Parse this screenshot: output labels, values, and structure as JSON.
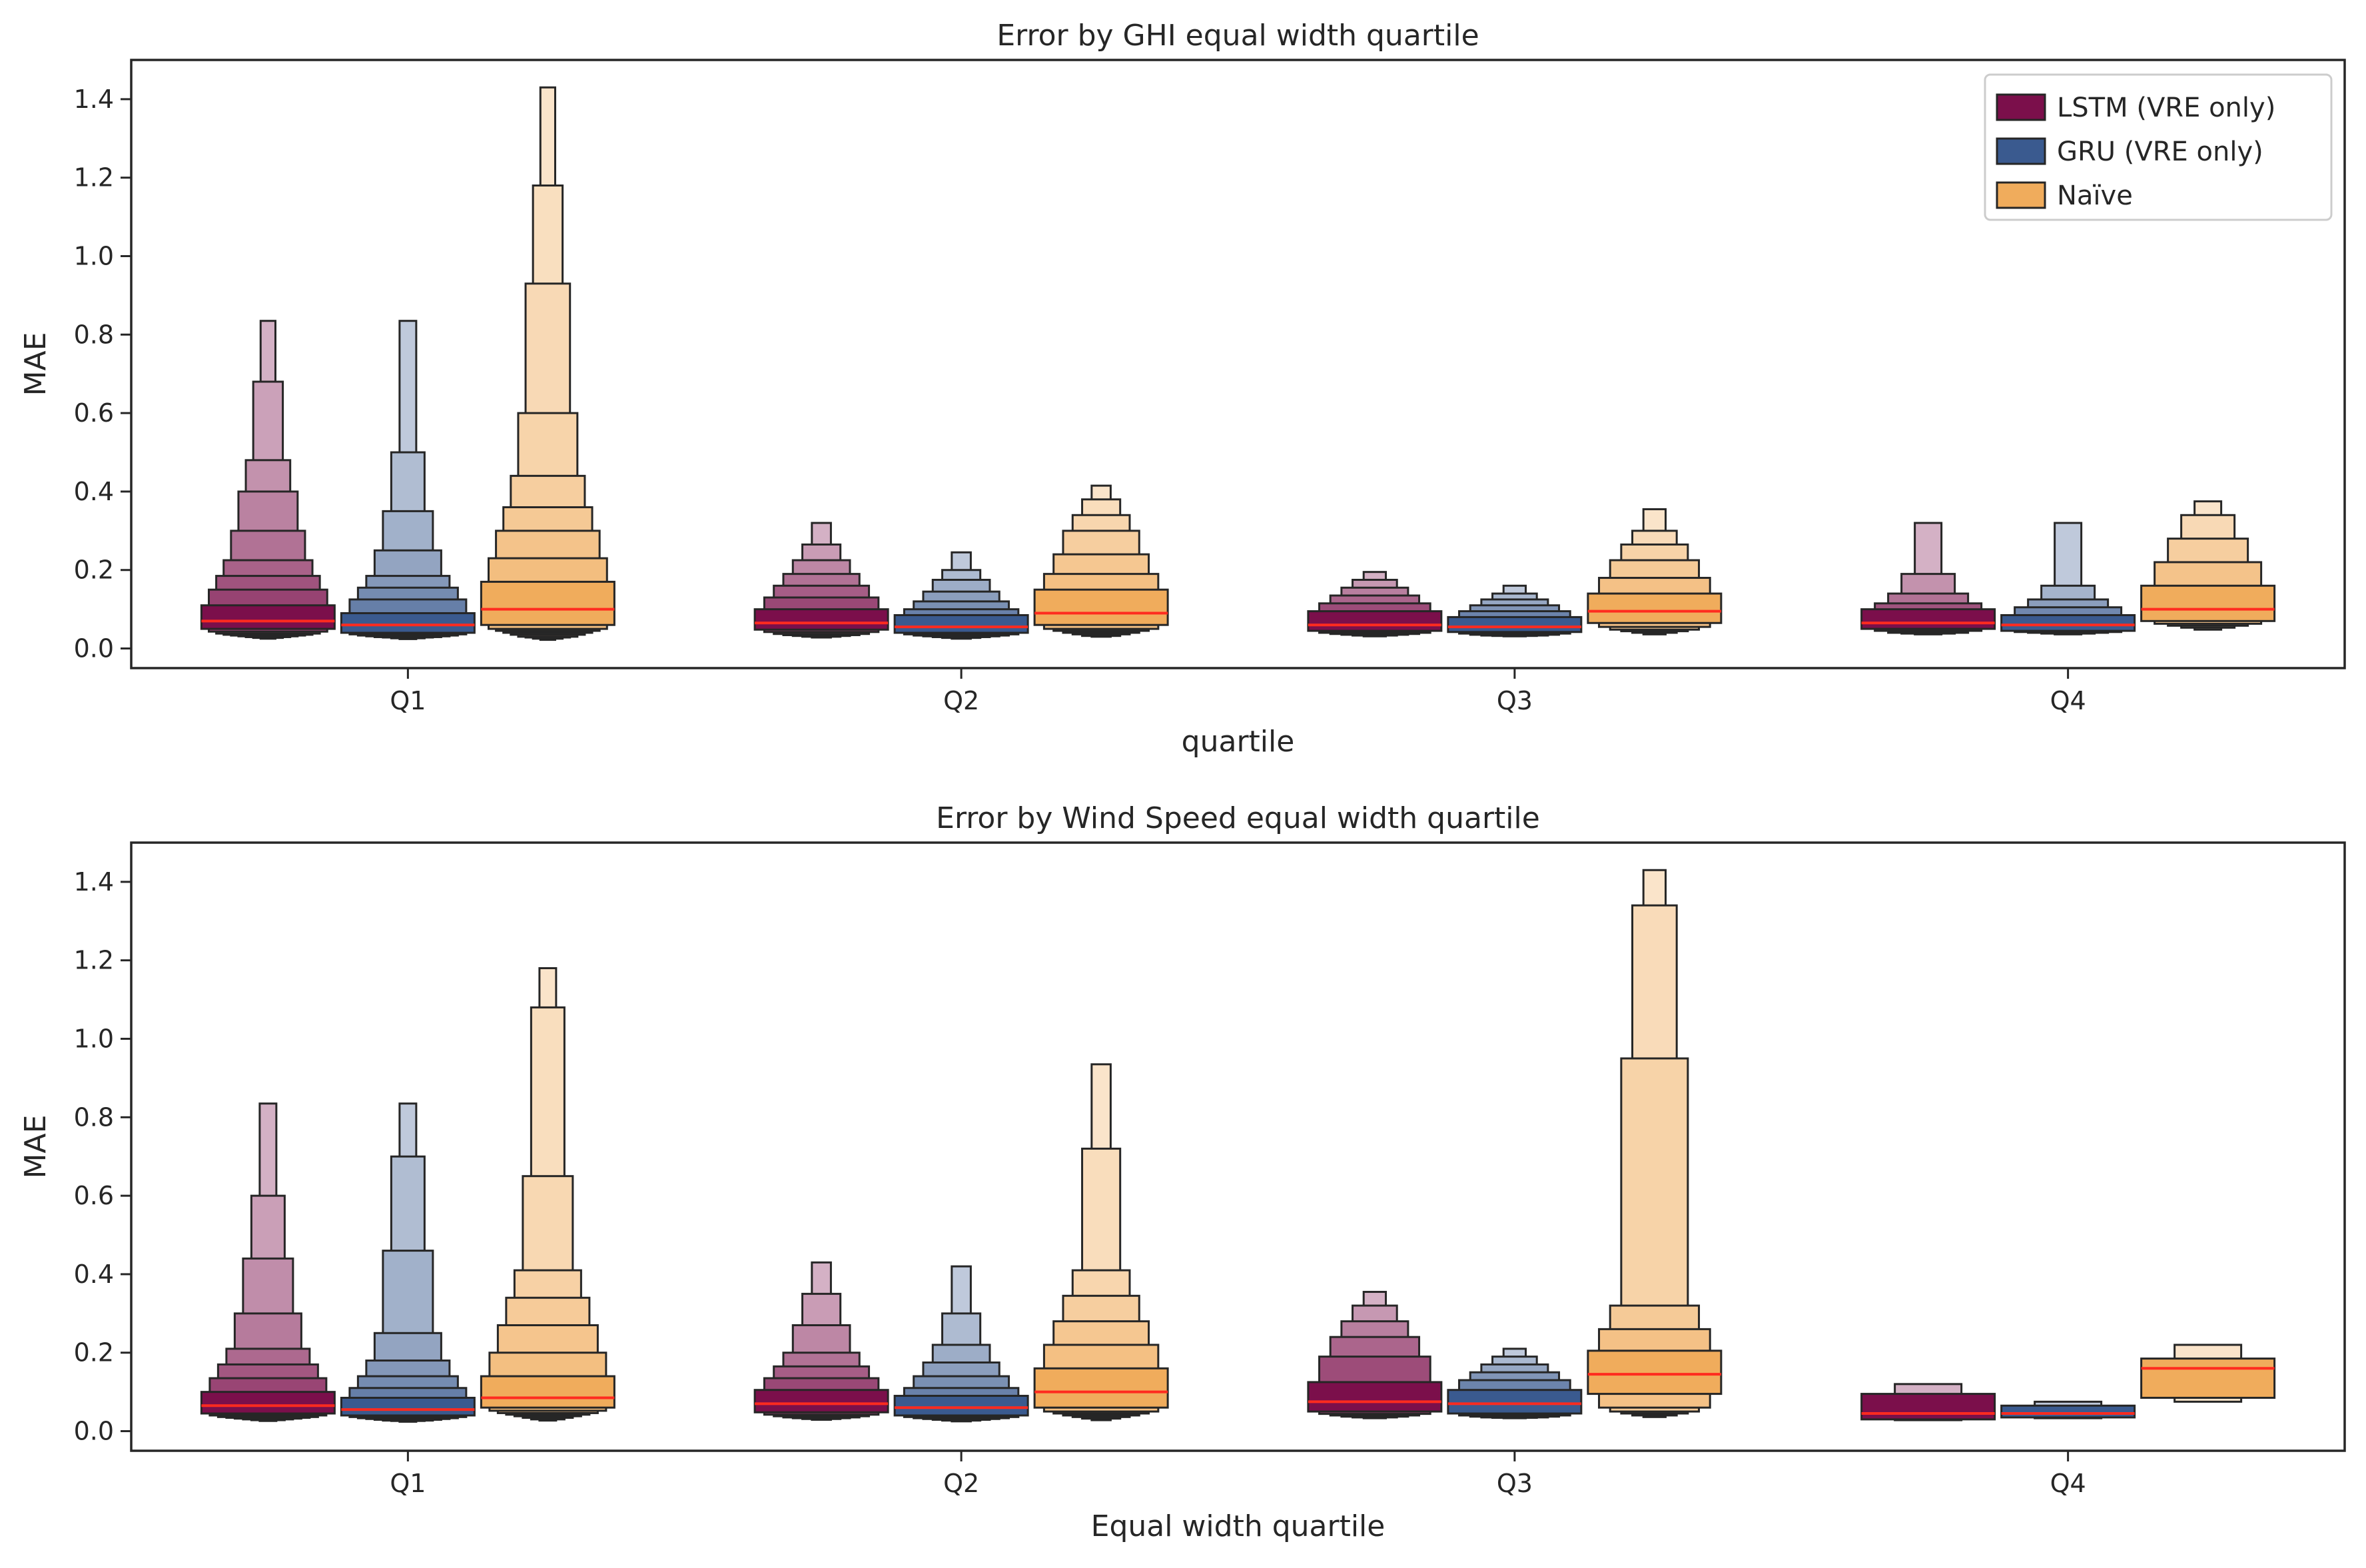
{
  "colors": {
    "LSTM (VRE only)": "#7b0f4b",
    "GRU (VRE only)": "#3a5a8f",
    "Naïve": "#f0ac5c",
    "median": "#ff2b1f",
    "edge": "#262626"
  },
  "legend": {
    "placement": "top-right",
    "entries": [
      "LSTM (VRE only)",
      "GRU (VRE only)",
      "Naïve"
    ]
  },
  "chart_data": [
    {
      "type": "boxen",
      "title": "Error by GHI equal width quartile",
      "xlabel": "quartile",
      "ylabel": "MAE",
      "ylim": [
        -0.05,
        1.5
      ],
      "yticks": [
        0.0,
        0.2,
        0.4,
        0.6,
        0.8,
        1.0,
        1.2,
        1.4
      ],
      "ytick_labels": [
        "0.0",
        "0.2",
        "0.4",
        "0.6",
        "0.8",
        "1.0",
        "1.2",
        "1.4"
      ],
      "categories": [
        "Q1",
        "Q2",
        "Q3",
        "Q4"
      ],
      "series": [
        {
          "name": "LSTM (VRE only)",
          "groups": [
            {
              "median": 0.07,
              "levels": [
                [
                  0.05,
                  0.11
                ],
                [
                  0.043,
                  0.15
                ],
                [
                  0.038,
                  0.185
                ],
                [
                  0.035,
                  0.225
                ],
                [
                  0.033,
                  0.3
                ],
                [
                  0.031,
                  0.4
                ],
                [
                  0.029,
                  0.48
                ],
                [
                  0.027,
                  0.68
                ],
                [
                  0.025,
                  0.835
                ]
              ]
            },
            {
              "median": 0.065,
              "levels": [
                [
                  0.048,
                  0.1
                ],
                [
                  0.042,
                  0.13
                ],
                [
                  0.037,
                  0.16
                ],
                [
                  0.034,
                  0.19
                ],
                [
                  0.032,
                  0.225
                ],
                [
                  0.03,
                  0.265
                ],
                [
                  0.028,
                  0.32
                ]
              ]
            },
            {
              "median": 0.06,
              "levels": [
                [
                  0.045,
                  0.095
                ],
                [
                  0.04,
                  0.115
                ],
                [
                  0.037,
                  0.135
                ],
                [
                  0.035,
                  0.155
                ],
                [
                  0.033,
                  0.175
                ],
                [
                  0.031,
                  0.195
                ]
              ]
            },
            {
              "median": 0.065,
              "levels": [
                [
                  0.05,
                  0.1
                ],
                [
                  0.045,
                  0.115
                ],
                [
                  0.04,
                  0.14
                ],
                [
                  0.038,
                  0.19
                ],
                [
                  0.036,
                  0.32
                ]
              ]
            }
          ]
        },
        {
          "name": "GRU (VRE only)",
          "groups": [
            {
              "median": 0.06,
              "levels": [
                [
                  0.04,
                  0.09
                ],
                [
                  0.036,
                  0.125
                ],
                [
                  0.033,
                  0.155
                ],
                [
                  0.031,
                  0.185
                ],
                [
                  0.029,
                  0.25
                ],
                [
                  0.028,
                  0.35
                ],
                [
                  0.026,
                  0.5
                ],
                [
                  0.024,
                  0.835
                ]
              ]
            },
            {
              "median": 0.055,
              "levels": [
                [
                  0.04,
                  0.085
                ],
                [
                  0.036,
                  0.1
                ],
                [
                  0.033,
                  0.12
                ],
                [
                  0.031,
                  0.145
                ],
                [
                  0.029,
                  0.175
                ],
                [
                  0.027,
                  0.2
                ],
                [
                  0.025,
                  0.245
                ]
              ]
            },
            {
              "median": 0.055,
              "levels": [
                [
                  0.042,
                  0.08
                ],
                [
                  0.038,
                  0.095
                ],
                [
                  0.035,
                  0.11
                ],
                [
                  0.033,
                  0.125
                ],
                [
                  0.032,
                  0.14
                ],
                [
                  0.031,
                  0.16
                ]
              ]
            },
            {
              "median": 0.06,
              "levels": [
                [
                  0.045,
                  0.085
                ],
                [
                  0.042,
                  0.105
                ],
                [
                  0.04,
                  0.125
                ],
                [
                  0.038,
                  0.16
                ],
                [
                  0.036,
                  0.32
                ]
              ]
            }
          ]
        },
        {
          "name": "Naïve",
          "groups": [
            {
              "median": 0.1,
              "levels": [
                [
                  0.06,
                  0.17
                ],
                [
                  0.05,
                  0.23
                ],
                [
                  0.045,
                  0.3
                ],
                [
                  0.04,
                  0.36
                ],
                [
                  0.035,
                  0.44
                ],
                [
                  0.03,
                  0.6
                ],
                [
                  0.028,
                  0.93
                ],
                [
                  0.025,
                  1.18
                ],
                [
                  0.022,
                  1.43
                ]
              ]
            },
            {
              "median": 0.09,
              "levels": [
                [
                  0.06,
                  0.15
                ],
                [
                  0.05,
                  0.19
                ],
                [
                  0.045,
                  0.24
                ],
                [
                  0.04,
                  0.3
                ],
                [
                  0.036,
                  0.34
                ],
                [
                  0.032,
                  0.38
                ],
                [
                  0.03,
                  0.415
                ]
              ]
            },
            {
              "median": 0.095,
              "levels": [
                [
                  0.065,
                  0.14
                ],
                [
                  0.055,
                  0.18
                ],
                [
                  0.048,
                  0.225
                ],
                [
                  0.044,
                  0.265
                ],
                [
                  0.04,
                  0.3
                ],
                [
                  0.036,
                  0.355
                ]
              ]
            },
            {
              "median": 0.1,
              "levels": [
                [
                  0.07,
                  0.16
                ],
                [
                  0.063,
                  0.22
                ],
                [
                  0.058,
                  0.28
                ],
                [
                  0.053,
                  0.34
                ],
                [
                  0.048,
                  0.375
                ]
              ]
            }
          ]
        }
      ]
    },
    {
      "type": "boxen",
      "title": "Error by Wind Speed equal width quartile",
      "xlabel": "Equal width quartile",
      "ylabel": "MAE",
      "ylim": [
        -0.05,
        1.5
      ],
      "yticks": [
        0.0,
        0.2,
        0.4,
        0.6,
        0.8,
        1.0,
        1.2,
        1.4
      ],
      "ytick_labels": [
        "0.0",
        "0.2",
        "0.4",
        "0.6",
        "0.8",
        "1.0",
        "1.2",
        "1.4"
      ],
      "categories": [
        "Q1",
        "Q2",
        "Q3",
        "Q4"
      ],
      "series": [
        {
          "name": "LSTM (VRE only)",
          "groups": [
            {
              "median": 0.065,
              "levels": [
                [
                  0.045,
                  0.1
                ],
                [
                  0.04,
                  0.135
                ],
                [
                  0.036,
                  0.17
                ],
                [
                  0.034,
                  0.21
                ],
                [
                  0.032,
                  0.3
                ],
                [
                  0.03,
                  0.44
                ],
                [
                  0.028,
                  0.6
                ],
                [
                  0.026,
                  0.835
                ]
              ]
            },
            {
              "median": 0.07,
              "levels": [
                [
                  0.048,
                  0.105
                ],
                [
                  0.042,
                  0.135
                ],
                [
                  0.038,
                  0.165
                ],
                [
                  0.035,
                  0.2
                ],
                [
                  0.033,
                  0.27
                ],
                [
                  0.031,
                  0.35
                ],
                [
                  0.029,
                  0.43
                ]
              ]
            },
            {
              "median": 0.075,
              "levels": [
                [
                  0.05,
                  0.125
                ],
                [
                  0.044,
                  0.19
                ],
                [
                  0.04,
                  0.24
                ],
                [
                  0.037,
                  0.28
                ],
                [
                  0.035,
                  0.32
                ],
                [
                  0.033,
                  0.355
                ]
              ]
            },
            {
              "median": 0.045,
              "levels": [
                [
                  0.03,
                  0.095
                ],
                [
                  0.028,
                  0.12
                ]
              ]
            }
          ]
        },
        {
          "name": "GRU (VRE only)",
          "groups": [
            {
              "median": 0.055,
              "levels": [
                [
                  0.04,
                  0.085
                ],
                [
                  0.036,
                  0.11
                ],
                [
                  0.033,
                  0.14
                ],
                [
                  0.031,
                  0.18
                ],
                [
                  0.029,
                  0.25
                ],
                [
                  0.027,
                  0.46
                ],
                [
                  0.026,
                  0.7
                ],
                [
                  0.024,
                  0.835
                ]
              ]
            },
            {
              "median": 0.06,
              "levels": [
                [
                  0.04,
                  0.09
                ],
                [
                  0.036,
                  0.11
                ],
                [
                  0.033,
                  0.14
                ],
                [
                  0.031,
                  0.175
                ],
                [
                  0.029,
                  0.22
                ],
                [
                  0.027,
                  0.3
                ],
                [
                  0.025,
                  0.42
                ]
              ]
            },
            {
              "median": 0.07,
              "levels": [
                [
                  0.045,
                  0.105
                ],
                [
                  0.04,
                  0.13
                ],
                [
                  0.037,
                  0.15
                ],
                [
                  0.035,
                  0.17
                ],
                [
                  0.034,
                  0.19
                ],
                [
                  0.033,
                  0.21
                ]
              ]
            },
            {
              "median": 0.045,
              "levels": [
                [
                  0.035,
                  0.065
                ],
                [
                  0.033,
                  0.075
                ]
              ]
            }
          ]
        },
        {
          "name": "Naïve",
          "groups": [
            {
              "median": 0.085,
              "levels": [
                [
                  0.06,
                  0.14
                ],
                [
                  0.052,
                  0.2
                ],
                [
                  0.046,
                  0.27
                ],
                [
                  0.042,
                  0.34
                ],
                [
                  0.038,
                  0.41
                ],
                [
                  0.034,
                  0.65
                ],
                [
                  0.03,
                  1.08
                ],
                [
                  0.027,
                  1.18
                ]
              ]
            },
            {
              "median": 0.1,
              "levels": [
                [
                  0.06,
                  0.16
                ],
                [
                  0.05,
                  0.22
                ],
                [
                  0.045,
                  0.28
                ],
                [
                  0.04,
                  0.345
                ],
                [
                  0.036,
                  0.41
                ],
                [
                  0.032,
                  0.72
                ],
                [
                  0.028,
                  0.935
                ]
              ]
            },
            {
              "median": 0.145,
              "levels": [
                [
                  0.095,
                  0.205
                ],
                [
                  0.06,
                  0.26
                ],
                [
                  0.05,
                  0.32
                ],
                [
                  0.045,
                  0.95
                ],
                [
                  0.04,
                  1.34
                ],
                [
                  0.036,
                  1.43
                ]
              ]
            },
            {
              "median": 0.16,
              "levels": [
                [
                  0.085,
                  0.185
                ],
                [
                  0.075,
                  0.22
                ]
              ]
            }
          ]
        }
      ]
    }
  ]
}
